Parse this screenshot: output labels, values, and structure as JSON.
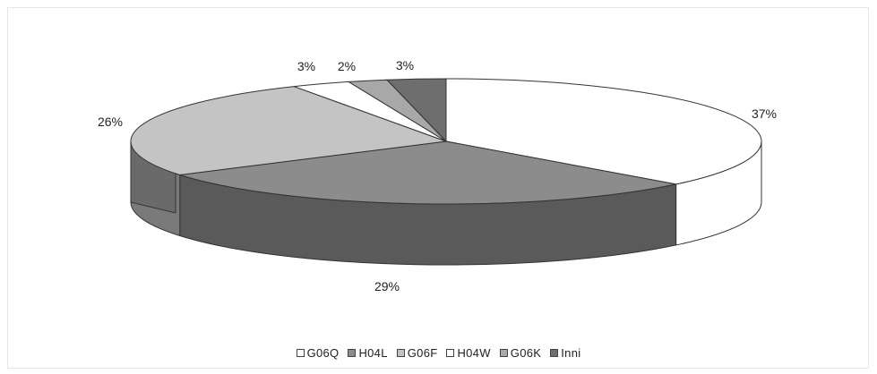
{
  "chart_data": {
    "type": "pie",
    "style": "3d-exploded-tilted",
    "title": "",
    "legend_position": "bottom",
    "slices": [
      {
        "name": "G06Q",
        "value": 37,
        "label": "37%",
        "color": "#ffffff"
      },
      {
        "name": "H04L",
        "value": 29,
        "label": "29%",
        "color": "#8c8c8c"
      },
      {
        "name": "G06F",
        "value": 26,
        "label": "26%",
        "color": "#c4c4c4"
      },
      {
        "name": "H04W",
        "value": 3,
        "label": "3%",
        "color": "#ffffff"
      },
      {
        "name": "G06K",
        "value": 2,
        "label": "2%",
        "color": "#a8a8a8"
      },
      {
        "name": "Inni",
        "value": 3,
        "label": "3%",
        "color": "#6e6e6e"
      }
    ]
  }
}
